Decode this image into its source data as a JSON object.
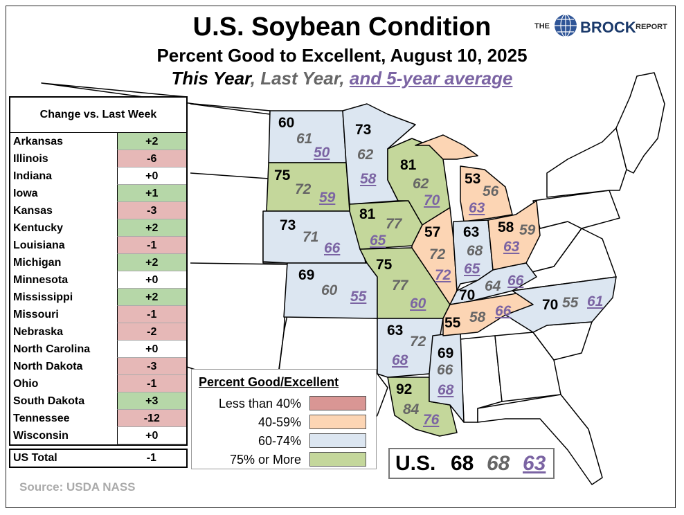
{
  "title": "U.S. Soybean Condition",
  "subtitle": "Percent Good to Excellent, August 10, 2025",
  "series_line": {
    "this_year": "This Year",
    "sep1": ",",
    "last_year": "Last Year",
    "sep2": ",",
    "avg": "and 5-year average"
  },
  "brand": {
    "the": "THE",
    "name": "BROCK",
    "report": "REPORT"
  },
  "change_table": {
    "header": "Change vs. Last Week",
    "rows": [
      {
        "state": "Arkansas",
        "value": "+2",
        "kind": "pos"
      },
      {
        "state": "Illinois",
        "value": "-6",
        "kind": "neg"
      },
      {
        "state": "Indiana",
        "value": "+0",
        "kind": "zero"
      },
      {
        "state": "Iowa",
        "value": "+1",
        "kind": "pos"
      },
      {
        "state": "Kansas",
        "value": "-3",
        "kind": "neg"
      },
      {
        "state": "Kentucky",
        "value": "+2",
        "kind": "pos"
      },
      {
        "state": "Louisiana",
        "value": "-1",
        "kind": "neg"
      },
      {
        "state": "Michigan",
        "value": "+2",
        "kind": "pos"
      },
      {
        "state": "Minnesota",
        "value": "+0",
        "kind": "zero"
      },
      {
        "state": "Mississippi",
        "value": "+2",
        "kind": "pos"
      },
      {
        "state": "Missouri",
        "value": "-1",
        "kind": "neg"
      },
      {
        "state": "Nebraska",
        "value": "-2",
        "kind": "neg"
      },
      {
        "state": "North Carolina",
        "value": "+0",
        "kind": "zero"
      },
      {
        "state": "North Dakota",
        "value": "-3",
        "kind": "neg"
      },
      {
        "state": "Ohio",
        "value": "-1",
        "kind": "neg"
      },
      {
        "state": "South Dakota",
        "value": "+3",
        "kind": "pos"
      },
      {
        "state": "Tennessee",
        "value": "-12",
        "kind": "neg"
      },
      {
        "state": "Wisconsin",
        "value": "+0",
        "kind": "zero"
      }
    ],
    "total_label": "US Total",
    "total_value": "-1"
  },
  "source": "Source: USDA NASS",
  "legend": {
    "title": "Percent Good/Excellent",
    "items": [
      {
        "label": "Less than 40%",
        "color": "#d99694"
      },
      {
        "label": "40-59%",
        "color": "#fcd5b4"
      },
      {
        "label": "60-74%",
        "color": "#dce6f1"
      },
      {
        "label": "75% or More",
        "color": "#c4d79b"
      }
    ]
  },
  "colors": {
    "lt40": "#d99694",
    "c40_59": "#fcd5b4",
    "c60_74": "#dce6f1",
    "c75": "#c4d79b",
    "avg_text": "#7b64a3",
    "last_text": "#666666"
  },
  "us_total": {
    "label": "U.S.",
    "this_year": "68",
    "last_year": "68",
    "avg": "63"
  },
  "states": {
    "ND": {
      "this_year": "60",
      "last_year": "61",
      "avg": "50",
      "class": "60-74"
    },
    "SD": {
      "this_year": "75",
      "last_year": "72",
      "avg": "59",
      "class": "75+"
    },
    "NE": {
      "this_year": "73",
      "last_year": "71",
      "avg": "66",
      "class": "60-74"
    },
    "KS": {
      "this_year": "69",
      "last_year": "60",
      "avg": "55",
      "class": "60-74"
    },
    "MN": {
      "this_year": "73",
      "last_year": "62",
      "avg": "58",
      "class": "60-74"
    },
    "IA": {
      "this_year": "81",
      "last_year": "77",
      "avg": "65",
      "class": "75+"
    },
    "MO": {
      "this_year": "75",
      "last_year": "77",
      "avg": "60",
      "class": "75+"
    },
    "AR": {
      "this_year": "63",
      "last_year": "72",
      "avg": "68",
      "class": "60-74"
    },
    "LA": {
      "this_year": "92",
      "last_year": "84",
      "avg": "76",
      "class": "75+"
    },
    "MS": {
      "this_year": "69",
      "last_year": "66",
      "avg": "68",
      "class": "60-74"
    },
    "WI": {
      "this_year": "81",
      "last_year": "62",
      "avg": "70",
      "class": "75+"
    },
    "IL": {
      "this_year": "57",
      "last_year": "72",
      "avg": "72",
      "class": "40-59"
    },
    "MI": {
      "this_year": "53",
      "last_year": "56",
      "avg": "63",
      "class": "40-59"
    },
    "IN": {
      "this_year": "63",
      "last_year": "68",
      "avg": "65",
      "class": "60-74"
    },
    "OH": {
      "this_year": "58",
      "last_year": "59",
      "avg": "63",
      "class": "40-59"
    },
    "KY": {
      "this_year": "70",
      "last_year": "64",
      "avg": "66",
      "class": "60-74"
    },
    "TN": {
      "this_year": "55",
      "last_year": "58",
      "avg": "66",
      "class": "40-59"
    },
    "NC": {
      "this_year": "70",
      "last_year": "55",
      "avg": "61",
      "class": "60-74"
    }
  }
}
